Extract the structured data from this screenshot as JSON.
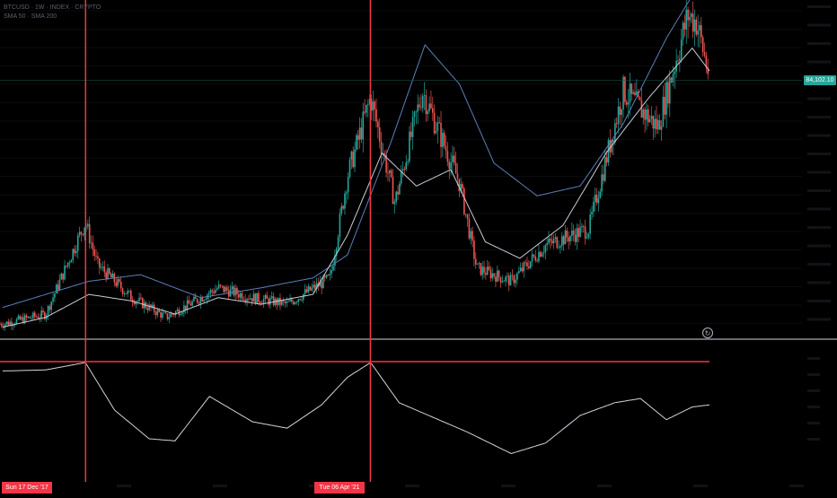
{
  "legend": {
    "symbol_line": "BTCUSD · 1W · INDEX · CRYPTO",
    "indicator_line": "SMA 50 · SMA 200"
  },
  "current_price_label": "84,102.10",
  "crosshair_dates": [
    {
      "label": "Sun 17 Dec '17",
      "date": "2017-12-17"
    },
    {
      "label": "Tue 06 Apr '21",
      "date": "2021-04-06"
    }
  ],
  "icons": {
    "reset": "refresh-icon"
  },
  "colors": {
    "background": "#000000",
    "up_candle": "#26a69a",
    "down_candle": "#ef5350",
    "ma_long": "#5b7fb8",
    "ma_short": "#c8ccd4",
    "oscillator": "#d1d4dc",
    "crosshair": "#f23645",
    "divider": "#cfd3dc"
  },
  "chart_data": {
    "type": "line",
    "main_pane": {
      "series": [
        {
          "key": "price",
          "x": [
            2017.0,
            2017.5,
            2017.96,
            2018.1,
            2018.5,
            2018.9,
            2019.5,
            2019.9,
            2020.3,
            2020.8,
            2021.0,
            2021.27,
            2021.55,
            2021.87,
            2022.3,
            2022.5,
            2022.9,
            2023.3,
            2023.8,
            2024.2,
            2024.6,
            2024.95,
            2025.05,
            2025.2
          ],
          "y": [
            0.03,
            0.06,
            0.34,
            0.21,
            0.11,
            0.05,
            0.14,
            0.11,
            0.09,
            0.17,
            0.48,
            0.72,
            0.4,
            0.74,
            0.46,
            0.2,
            0.16,
            0.27,
            0.32,
            0.74,
            0.63,
            0.97,
            0.95,
            0.78
          ]
        },
        {
          "key": "ma_long",
          "x": [
            2017.0,
            2018.0,
            2018.6,
            2019.3,
            2020.0,
            2020.6,
            2021.0,
            2021.5,
            2021.9,
            2022.3,
            2022.7,
            2023.2,
            2023.7,
            2024.2,
            2024.7,
            2025.0
          ],
          "y": [
            0.08,
            0.16,
            0.18,
            0.11,
            0.14,
            0.17,
            0.24,
            0.58,
            0.88,
            0.76,
            0.52,
            0.42,
            0.45,
            0.64,
            0.9,
            1.03
          ]
        },
        {
          "key": "ma_short",
          "x": [
            2017.0,
            2017.5,
            2018.0,
            2018.5,
            2019.0,
            2019.5,
            2020.0,
            2020.6,
            2021.0,
            2021.4,
            2021.8,
            2022.2,
            2022.6,
            2023.0,
            2023.5,
            2024.0,
            2024.5,
            2025.0,
            2025.2
          ],
          "y": [
            0.02,
            0.05,
            0.12,
            0.1,
            0.06,
            0.11,
            0.09,
            0.12,
            0.3,
            0.55,
            0.45,
            0.5,
            0.28,
            0.23,
            0.33,
            0.55,
            0.72,
            0.87,
            0.8
          ]
        }
      ]
    },
    "oscillator_pane": {
      "series": [
        {
          "key": "oscillator",
          "x": [
            2017.0,
            2017.5,
            2017.96,
            2018.3,
            2018.7,
            2019.0,
            2019.4,
            2019.9,
            2020.3,
            2020.7,
            2021.0,
            2021.27,
            2021.6,
            2022.0,
            2022.4,
            2022.9,
            2023.3,
            2023.7,
            2024.1,
            2024.4,
            2024.7,
            2025.0,
            2025.2
          ],
          "y": [
            0.92,
            0.93,
            1.0,
            0.55,
            0.28,
            0.26,
            0.68,
            0.44,
            0.38,
            0.6,
            0.86,
            1.0,
            0.62,
            0.48,
            0.34,
            0.14,
            0.24,
            0.5,
            0.62,
            0.66,
            0.46,
            0.58,
            0.6
          ]
        }
      ]
    }
  }
}
